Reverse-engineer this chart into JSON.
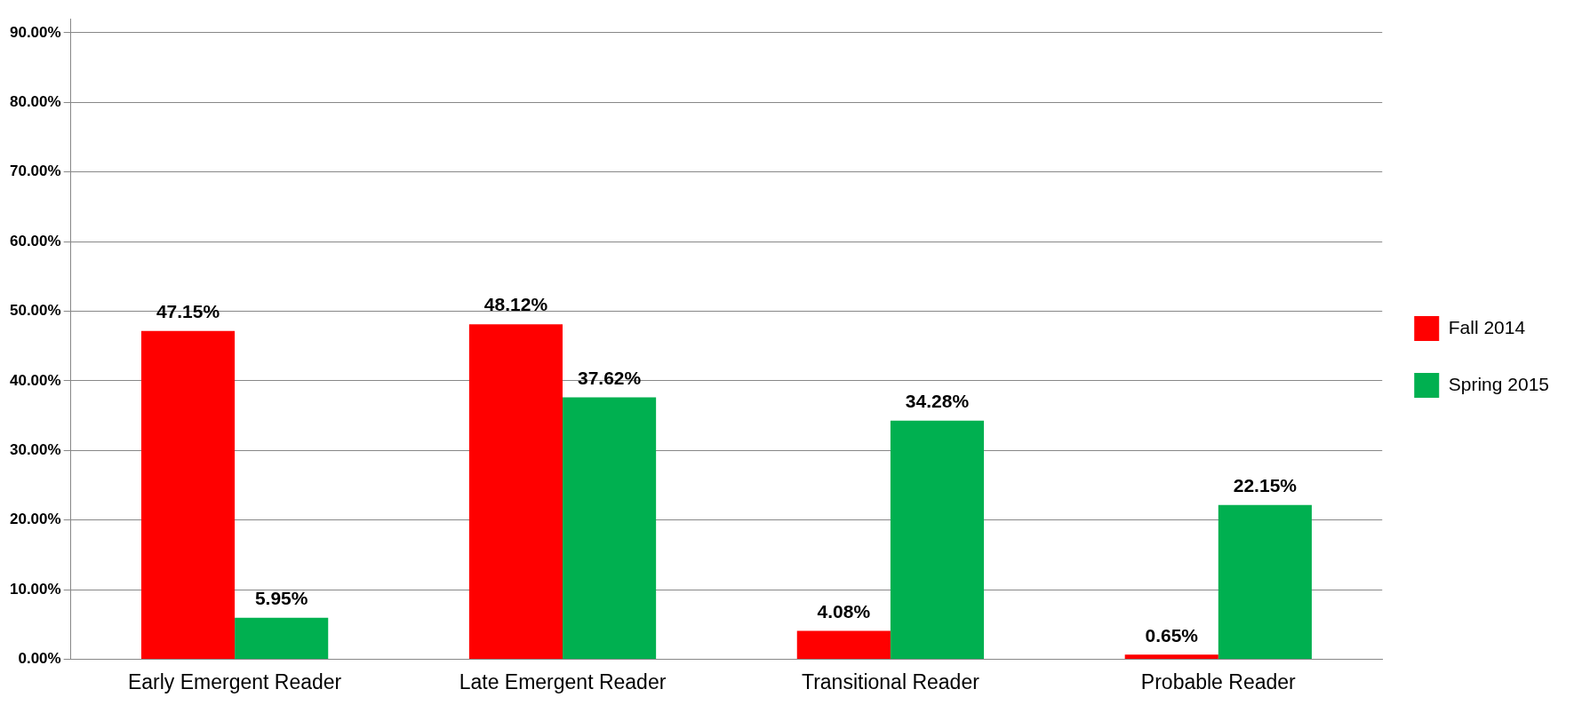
{
  "chart_data": {
    "type": "bar",
    "categories": [
      "Early Emergent Reader",
      "Late Emergent Reader",
      "Transitional Reader",
      "Probable Reader"
    ],
    "series": [
      {
        "name": "Fall 2014",
        "color": "#ff0000",
        "values": [
          47.15,
          48.12,
          4.08,
          0.65
        ],
        "value_labels": [
          "47.15%",
          "48.12%",
          "4.08%",
          "0.65%"
        ]
      },
      {
        "name": "Spring 2015",
        "color": "#00b050",
        "values": [
          5.95,
          37.62,
          34.28,
          22.15
        ],
        "value_labels": [
          "5.95%",
          "37.62%",
          "34.28%",
          "22.15%"
        ]
      }
    ],
    "ylim": [
      0,
      92
    ],
    "yticks": [
      {
        "value": 0,
        "label": "0.00%"
      },
      {
        "value": 10,
        "label": "10.00%"
      },
      {
        "value": 20,
        "label": "20.00%"
      },
      {
        "value": 30,
        "label": "30.00%"
      },
      {
        "value": 40,
        "label": "40.00%"
      },
      {
        "value": 50,
        "label": "50.00%"
      },
      {
        "value": 60,
        "label": "60.00%"
      },
      {
        "value": 70,
        "label": "70.00%"
      },
      {
        "value": 80,
        "label": "80.00%"
      },
      {
        "value": 90,
        "label": "90.00%"
      }
    ],
    "grid": "y",
    "legend": "right"
  }
}
